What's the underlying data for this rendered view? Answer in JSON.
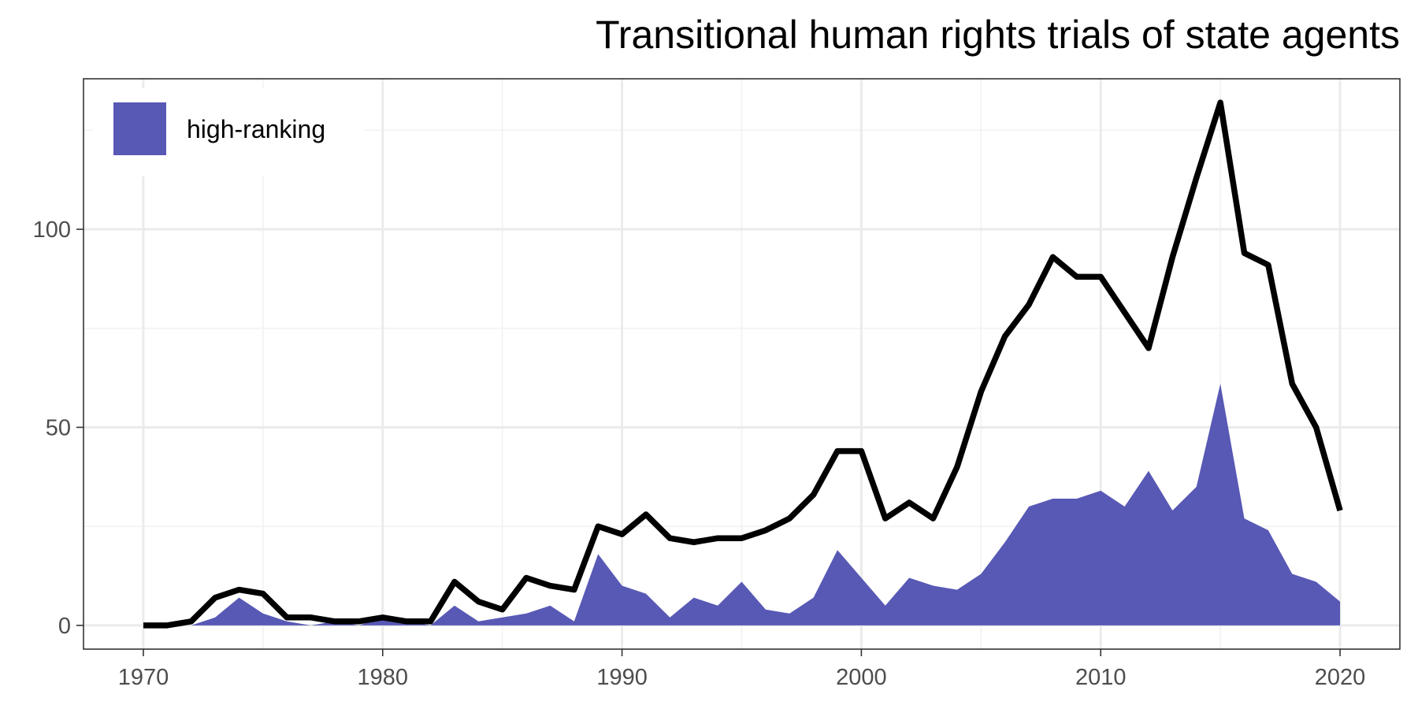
{
  "chart_data": {
    "type": "area",
    "title": "Transitional human rights trials of state agents",
    "xlabel": "",
    "ylabel": "",
    "xlim": [
      1967.5,
      2022.5
    ],
    "ylim": [
      -6,
      138
    ],
    "x_ticks": [
      1970,
      1980,
      1990,
      2000,
      2010,
      2020
    ],
    "y_ticks": [
      0,
      50,
      100
    ],
    "grid": true,
    "legend_position": "top-left",
    "x": [
      1970,
      1971,
      1972,
      1973,
      1974,
      1975,
      1976,
      1977,
      1978,
      1979,
      1980,
      1981,
      1982,
      1983,
      1984,
      1985,
      1986,
      1987,
      1988,
      1989,
      1990,
      1991,
      1992,
      1993,
      1994,
      1995,
      1996,
      1997,
      1998,
      1999,
      2000,
      2001,
      2002,
      2003,
      2004,
      2005,
      2006,
      2007,
      2008,
      2009,
      2010,
      2011,
      2012,
      2013,
      2014,
      2015,
      2016,
      2017,
      2018,
      2019,
      2020
    ],
    "series": [
      {
        "name": "",
        "kind": "line",
        "color": "#000000",
        "values": [
          0,
          0,
          1,
          7,
          9,
          8,
          2,
          2,
          1,
          1,
          2,
          1,
          1,
          11,
          6,
          4,
          12,
          10,
          9,
          25,
          23,
          28,
          22,
          21,
          22,
          22,
          24,
          27,
          33,
          44,
          44,
          27,
          31,
          27,
          40,
          59,
          73,
          81,
          93,
          88,
          88,
          79,
          70,
          93,
          113,
          132,
          94,
          91,
          61,
          50,
          29
        ]
      },
      {
        "name": "high-ranking",
        "kind": "area",
        "color": "#5858b5",
        "values": [
          0,
          0,
          0,
          2,
          7,
          3,
          1,
          0,
          1,
          0,
          2,
          1,
          0,
          5,
          1,
          2,
          3,
          5,
          1,
          18,
          10,
          8,
          2,
          7,
          5,
          11,
          4,
          3,
          7,
          19,
          12,
          5,
          12,
          10,
          9,
          13,
          21,
          30,
          32,
          32,
          34,
          30,
          39,
          29,
          35,
          61,
          27,
          24,
          13,
          11,
          6
        ]
      }
    ]
  }
}
